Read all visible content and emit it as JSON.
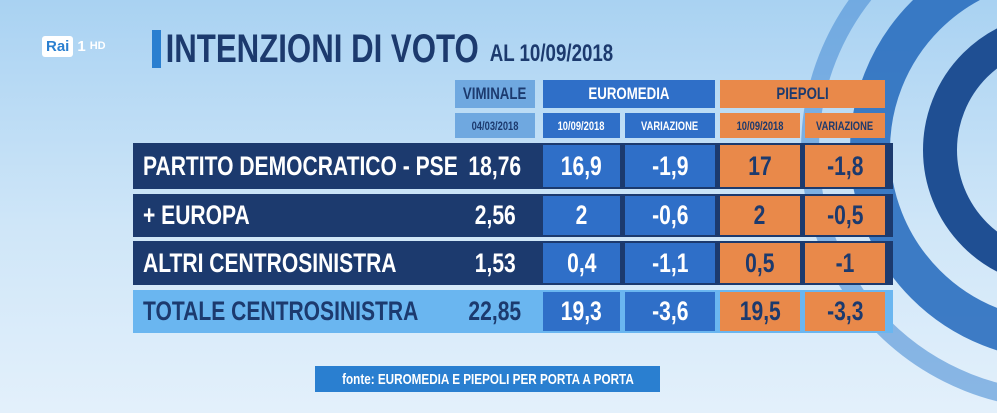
{
  "logo": {
    "brand": "Rai",
    "channel": "1",
    "quality": "HD"
  },
  "header": {
    "title": "INTENZIONI DI VOTO",
    "date": "AL 10/09/2018"
  },
  "table": {
    "groups": [
      "VIMINALE",
      "EUROMEDIA",
      "PIEPOLI"
    ],
    "subheaders": [
      "04/03/2018",
      "10/09/2018",
      "VARIAZIONE",
      "10/09/2018",
      "VARIAZIONE"
    ],
    "rows": [
      [
        "PARTITO DEMOCRATICO - PSE",
        "18,76",
        "16,9",
        "-1,9",
        "17",
        "-1,8"
      ],
      [
        "+ EUROPA",
        "2,56",
        "2",
        "-0,6",
        "2",
        "-0,5"
      ],
      [
        "ALTRI CENTROSINISTRA",
        "1,53",
        "0,4",
        "-1,1",
        "0,5",
        "-1"
      ],
      [
        "TOTALE CENTROSINISTRA",
        "22,85",
        "19,3",
        "-3,6",
        "19,5",
        "-3,3"
      ]
    ]
  },
  "source": "fonte: EUROMEDIA E PIEPOLI PER PORTA A PORTA"
}
